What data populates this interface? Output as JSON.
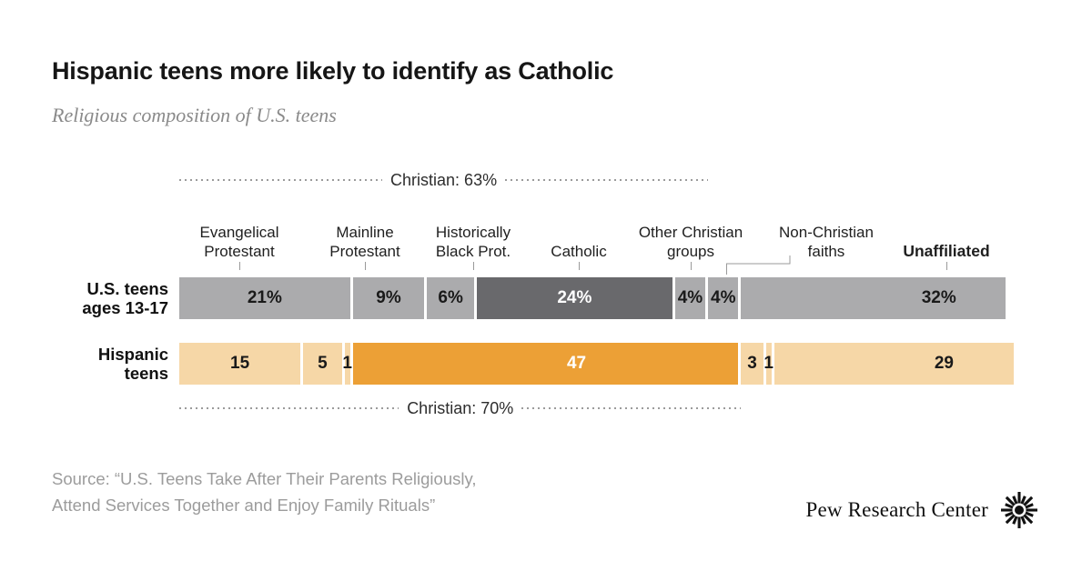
{
  "header": {
    "title": "Hispanic teens more likely to identify as Catholic",
    "subtitle": "Religious composition of U.S. teens"
  },
  "chart_data": {
    "type": "bar",
    "variant": "horizontal-stacked-pair",
    "title": "Hispanic teens more likely to identify as Catholic",
    "subtitle": "Religious composition of U.S. teens",
    "unit": "percent",
    "axis": {
      "min": 0,
      "max": 100,
      "grid": false,
      "legend": "none"
    },
    "categories": [
      "Evangelical\nProtestant",
      "Mainline\nProtestant",
      "Historically\nBlack Prot.",
      "Catholic",
      "Other Christian\ngroups",
      "Non-Christian\nfaiths",
      "Unaffiliated"
    ],
    "bold_category_indices": [
      6
    ],
    "palette": {
      "gray": "#ababad",
      "dark_gray": "#69696c",
      "tan": "#f6d7a7",
      "orange": "#eca036",
      "white_gap": "#ffffff"
    },
    "rows": [
      {
        "label": "U.S. teens\nages 13-17",
        "values": [
          21,
          9,
          6,
          24,
          4,
          4,
          32
        ],
        "value_labels": [
          "21%",
          "9%",
          "6%",
          "24%",
          "4%",
          "4%",
          "32%"
        ],
        "colors": [
          "gray",
          "gray",
          "gray",
          "dark_gray",
          "gray",
          "gray",
          "gray"
        ],
        "bracket": {
          "label": "Christian: 63%",
          "position": "above",
          "from_pct": 0,
          "to_pct": 64
        }
      },
      {
        "label": "Hispanic\nteens",
        "values": [
          15,
          5,
          1,
          47,
          3,
          1,
          29
        ],
        "value_labels": [
          "15",
          "5",
          "1",
          "47",
          "3",
          "1",
          "29"
        ],
        "colors": [
          "tan",
          "tan",
          "tan",
          "orange",
          "tan",
          "tan",
          "tan"
        ],
        "bracket": {
          "label": "Christian: 70%",
          "position": "below",
          "from_pct": 0,
          "to_pct": 68
        }
      }
    ]
  },
  "footer": {
    "source_line1": "Source: “U.S. Teens Take After Their Parents Religiously,",
    "source_line2": "Attend Services Together and Enjoy Family Rituals”",
    "logo_text": "Pew Research Center"
  }
}
